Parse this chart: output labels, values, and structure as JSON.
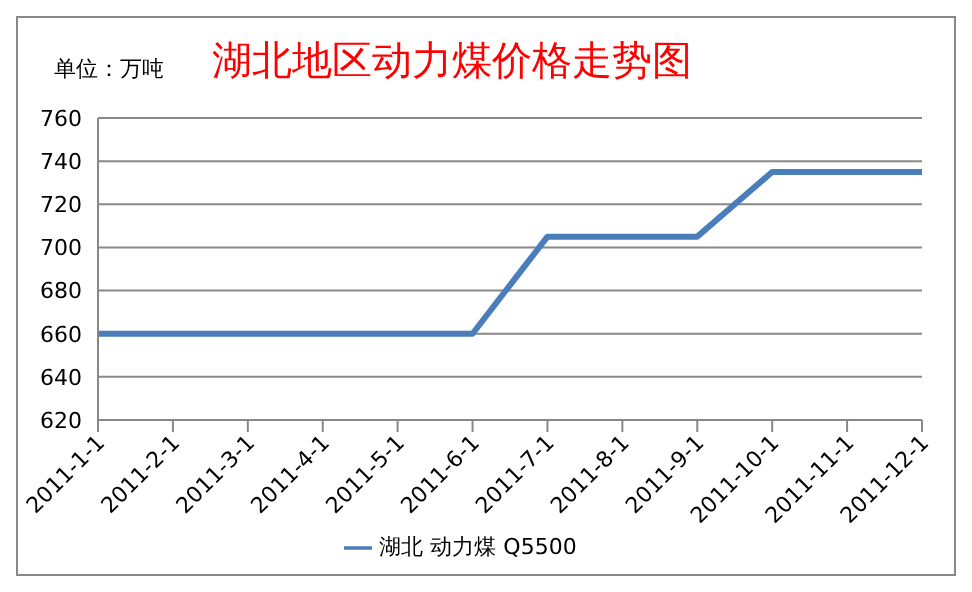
{
  "chart_data": {
    "type": "line",
    "title": "湖北地区动力煤价格走势图",
    "annotations": [
      "单位：万吨"
    ],
    "categories": [
      "2011-1-1",
      "2011-2-1",
      "2011-3-1",
      "2011-4-1",
      "2011-5-1",
      "2011-6-1",
      "2011-7-1",
      "2011-8-1",
      "2011-9-1",
      "2011-10-1",
      "2011-11-1",
      "2011-12-1"
    ],
    "series": [
      {
        "name": "湖北 动力煤 Q5500",
        "color": "#4a7ebb",
        "values": [
          660,
          660,
          660,
          660,
          660,
          660,
          705,
          705,
          705,
          735,
          735,
          735
        ]
      }
    ],
    "ylim": [
      620,
      760
    ],
    "yticks": [
      620,
      640,
      660,
      680,
      700,
      720,
      740,
      760
    ],
    "grid": "y",
    "legend": "bottom",
    "marker": "none",
    "line_style": "solid"
  }
}
